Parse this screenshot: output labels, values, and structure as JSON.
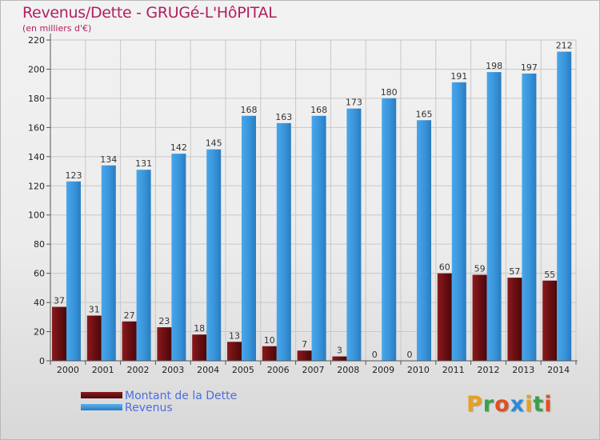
{
  "header": {
    "title": "Revenus/Dette - GRUGé-L'HôPITAL",
    "subtitle": "(en milliers d'€)"
  },
  "legend": {
    "items": [
      {
        "label": "Montant de la Dette",
        "color": "#6b0f12"
      },
      {
        "label": "Revenus",
        "color": "#3a96dc"
      }
    ]
  },
  "logo": {
    "letters": [
      "P",
      "r",
      "o",
      "x",
      "i",
      "t",
      "i"
    ],
    "colors": [
      "#e8a020",
      "#3aa04a",
      "#e05020",
      "#2a8ad8",
      "#e8a020",
      "#3aa04a",
      "#e05020"
    ]
  },
  "chart_data": {
    "type": "bar",
    "title": "Revenus/Dette - GRUGé-L'HôPITAL",
    "subtitle": "(en milliers d'€)",
    "categories": [
      "2000",
      "2001",
      "2002",
      "2003",
      "2004",
      "2005",
      "2006",
      "2007",
      "2008",
      "2009",
      "2010",
      "2011",
      "2012",
      "2013",
      "2014"
    ],
    "series": [
      {
        "name": "Montant de la Dette",
        "color": "#6b0f12",
        "values": [
          37,
          31,
          27,
          23,
          18,
          13,
          10,
          7,
          3,
          0,
          0,
          60,
          59,
          57,
          55
        ]
      },
      {
        "name": "Revenus",
        "color": "#3a96dc",
        "values": [
          123,
          134,
          131,
          142,
          145,
          168,
          163,
          168,
          173,
          180,
          165,
          191,
          198,
          197,
          212
        ]
      }
    ],
    "ylim": [
      0,
      220
    ],
    "yticks": [
      0,
      20,
      40,
      60,
      80,
      100,
      120,
      140,
      160,
      180,
      200,
      220
    ],
    "grid": true,
    "legend_position": "bottom-left"
  }
}
